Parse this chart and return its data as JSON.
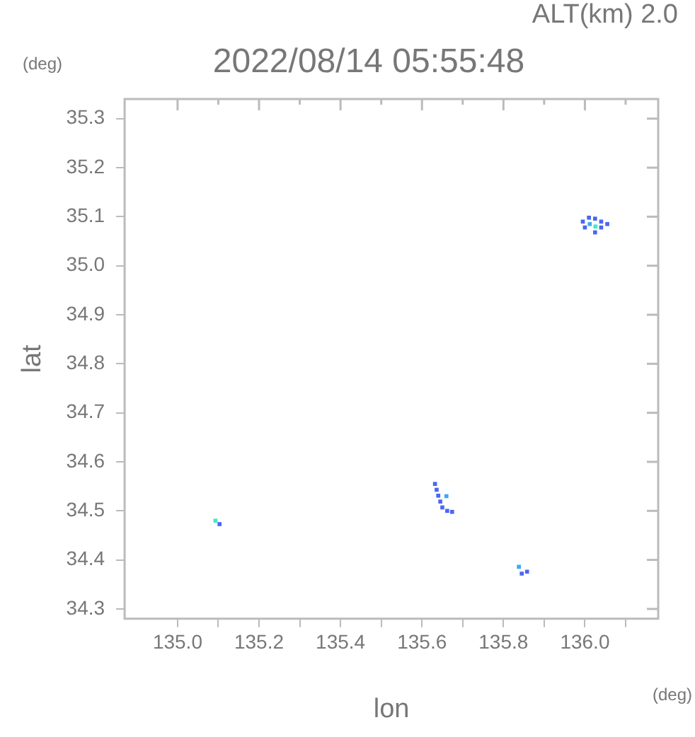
{
  "chart_data": {
    "type": "scatter",
    "title": "2022/08/14 05:55:48",
    "xlabel": "lon",
    "ylabel": "lat",
    "annotations": [
      "ALT(km) 2.0",
      "(deg)",
      "(deg)"
    ],
    "marker": "square",
    "grid": false,
    "legend": false,
    "xlim": [
      134.87,
      136.18
    ],
    "xticks": [
      {
        "value": 135,
        "label": "135.0"
      },
      {
        "value": 135.1,
        "label": null
      },
      {
        "value": 135.2,
        "label": "135.2"
      },
      {
        "value": 135.3,
        "label": null
      },
      {
        "value": 135.4,
        "label": "135.4"
      },
      {
        "value": 135.5,
        "label": null
      },
      {
        "value": 135.6,
        "label": "135.6"
      },
      {
        "value": 135.7,
        "label": null
      },
      {
        "value": 135.8,
        "label": "135.8"
      },
      {
        "value": 135.9,
        "label": null
      },
      {
        "value": 136,
        "label": "136.0"
      },
      {
        "value": 136.1,
        "label": null
      }
    ],
    "ylim": [
      34.28,
      35.34
    ],
    "yticks": [
      34.3,
      34.4,
      34.5,
      34.6,
      34.7,
      34.8,
      34.9,
      {
        "value": 35,
        "label": "35.0"
      },
      35.1,
      35.2,
      35.3
    ],
    "series": [
      {
        "color": "#4a66f0",
        "x": [
          135.995,
          136.01,
          136.025,
          136.04,
          136.055,
          136.0,
          136.04,
          136.025,
          135.632,
          135.636,
          135.64,
          135.645,
          135.65,
          135.662,
          135.674,
          135.845,
          135.858,
          135.103
        ],
        "values": [
          35.09,
          35.098,
          35.096,
          35.09,
          35.085,
          35.078,
          35.078,
          35.068,
          34.555,
          34.543,
          34.531,
          34.519,
          34.507,
          34.5,
          34.498,
          34.372,
          34.376,
          34.473
        ]
      },
      {
        "color": "#3fa8f5",
        "x": [
          136.012,
          135.66,
          135.838
        ],
        "values": [
          35.085,
          34.53,
          34.386
        ]
      },
      {
        "color": "#40e8c8",
        "x": [
          136.026,
          135.093
        ],
        "values": [
          35.08,
          34.48
        ]
      }
    ]
  }
}
